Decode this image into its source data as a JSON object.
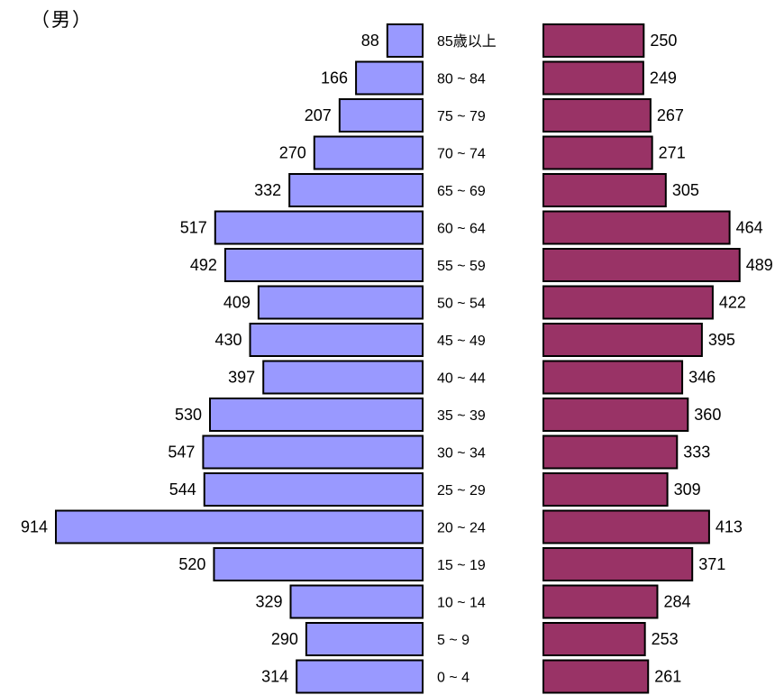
{
  "title": "（男）",
  "chart_data": {
    "type": "bar",
    "categories": [
      "85歳以上",
      "80 ~ 84",
      "75 ~ 79",
      "70 ~ 74",
      "65 ~ 69",
      "60 ~ 64",
      "55 ~ 59",
      "50 ~ 54",
      "45 ~ 49",
      "40 ~ 44",
      "35 ~ 39",
      "30 ~ 34",
      "25 ~ 29",
      "20 ~ 24",
      "15 ~ 19",
      "10 ~ 14",
      "5 ~ 9",
      "0 ~ 4"
    ],
    "series": [
      {
        "values": [
          88,
          166,
          207,
          270,
          332,
          517,
          492,
          409,
          430,
          397,
          530,
          547,
          544,
          914,
          520,
          329,
          290,
          314
        ],
        "color": "#9999ff",
        "side": "left"
      },
      {
        "values": [
          250,
          249,
          267,
          271,
          305,
          464,
          489,
          422,
          395,
          346,
          360,
          333,
          309,
          413,
          371,
          284,
          253,
          261
        ],
        "color": "#993366",
        "side": "right"
      }
    ],
    "xlim": [
      0,
      914
    ],
    "grid": false
  }
}
